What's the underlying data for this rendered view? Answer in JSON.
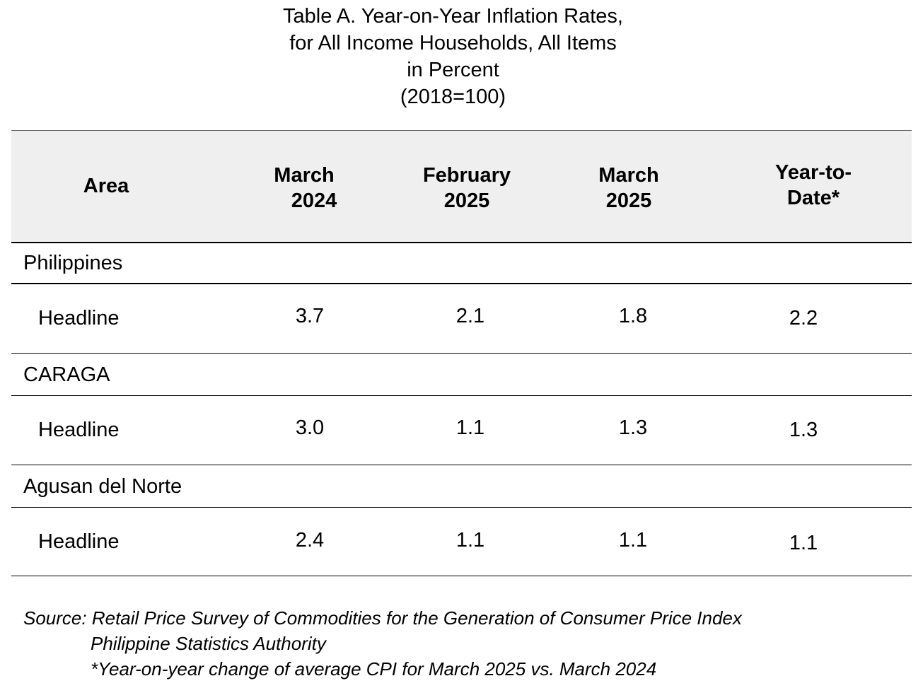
{
  "title": {
    "line1": "Table A. Year-on-Year Inflation Rates,",
    "line2": "for All Income Households, All Items",
    "line3": "in Percent",
    "line4": "(2018=100)"
  },
  "table": {
    "headers": {
      "area": "Area",
      "col1_line1": "March",
      "col1_line2": "2024",
      "col2_line1": "February",
      "col2_line2": "2025",
      "col3_line1": "March",
      "col3_line2": "2025",
      "col4_line1": "Year-to-",
      "col4_line2": "Date*"
    },
    "groups": [
      {
        "area": "Philippines",
        "row_label": "Headline",
        "values": [
          "3.7",
          "2.1",
          "1.8",
          "2.2"
        ]
      },
      {
        "area": "CARAGA",
        "row_label": "Headline",
        "values": [
          "3.0",
          "1.1",
          "1.3",
          "1.3"
        ]
      },
      {
        "area": "Agusan del Norte",
        "row_label": "Headline",
        "values": [
          "2.4",
          "1.1",
          "1.1",
          "1.1"
        ]
      }
    ]
  },
  "notes": {
    "source": "Source: Retail Price Survey of Commodities for the Generation of Consumer Price Index",
    "authority": "Philippine Statistics Authority",
    "footnote": "*Year-on-year change of average CPI for March 2025 vs. March 2024"
  },
  "colors": {
    "header_background": "#efefef",
    "rule": "#000000"
  }
}
